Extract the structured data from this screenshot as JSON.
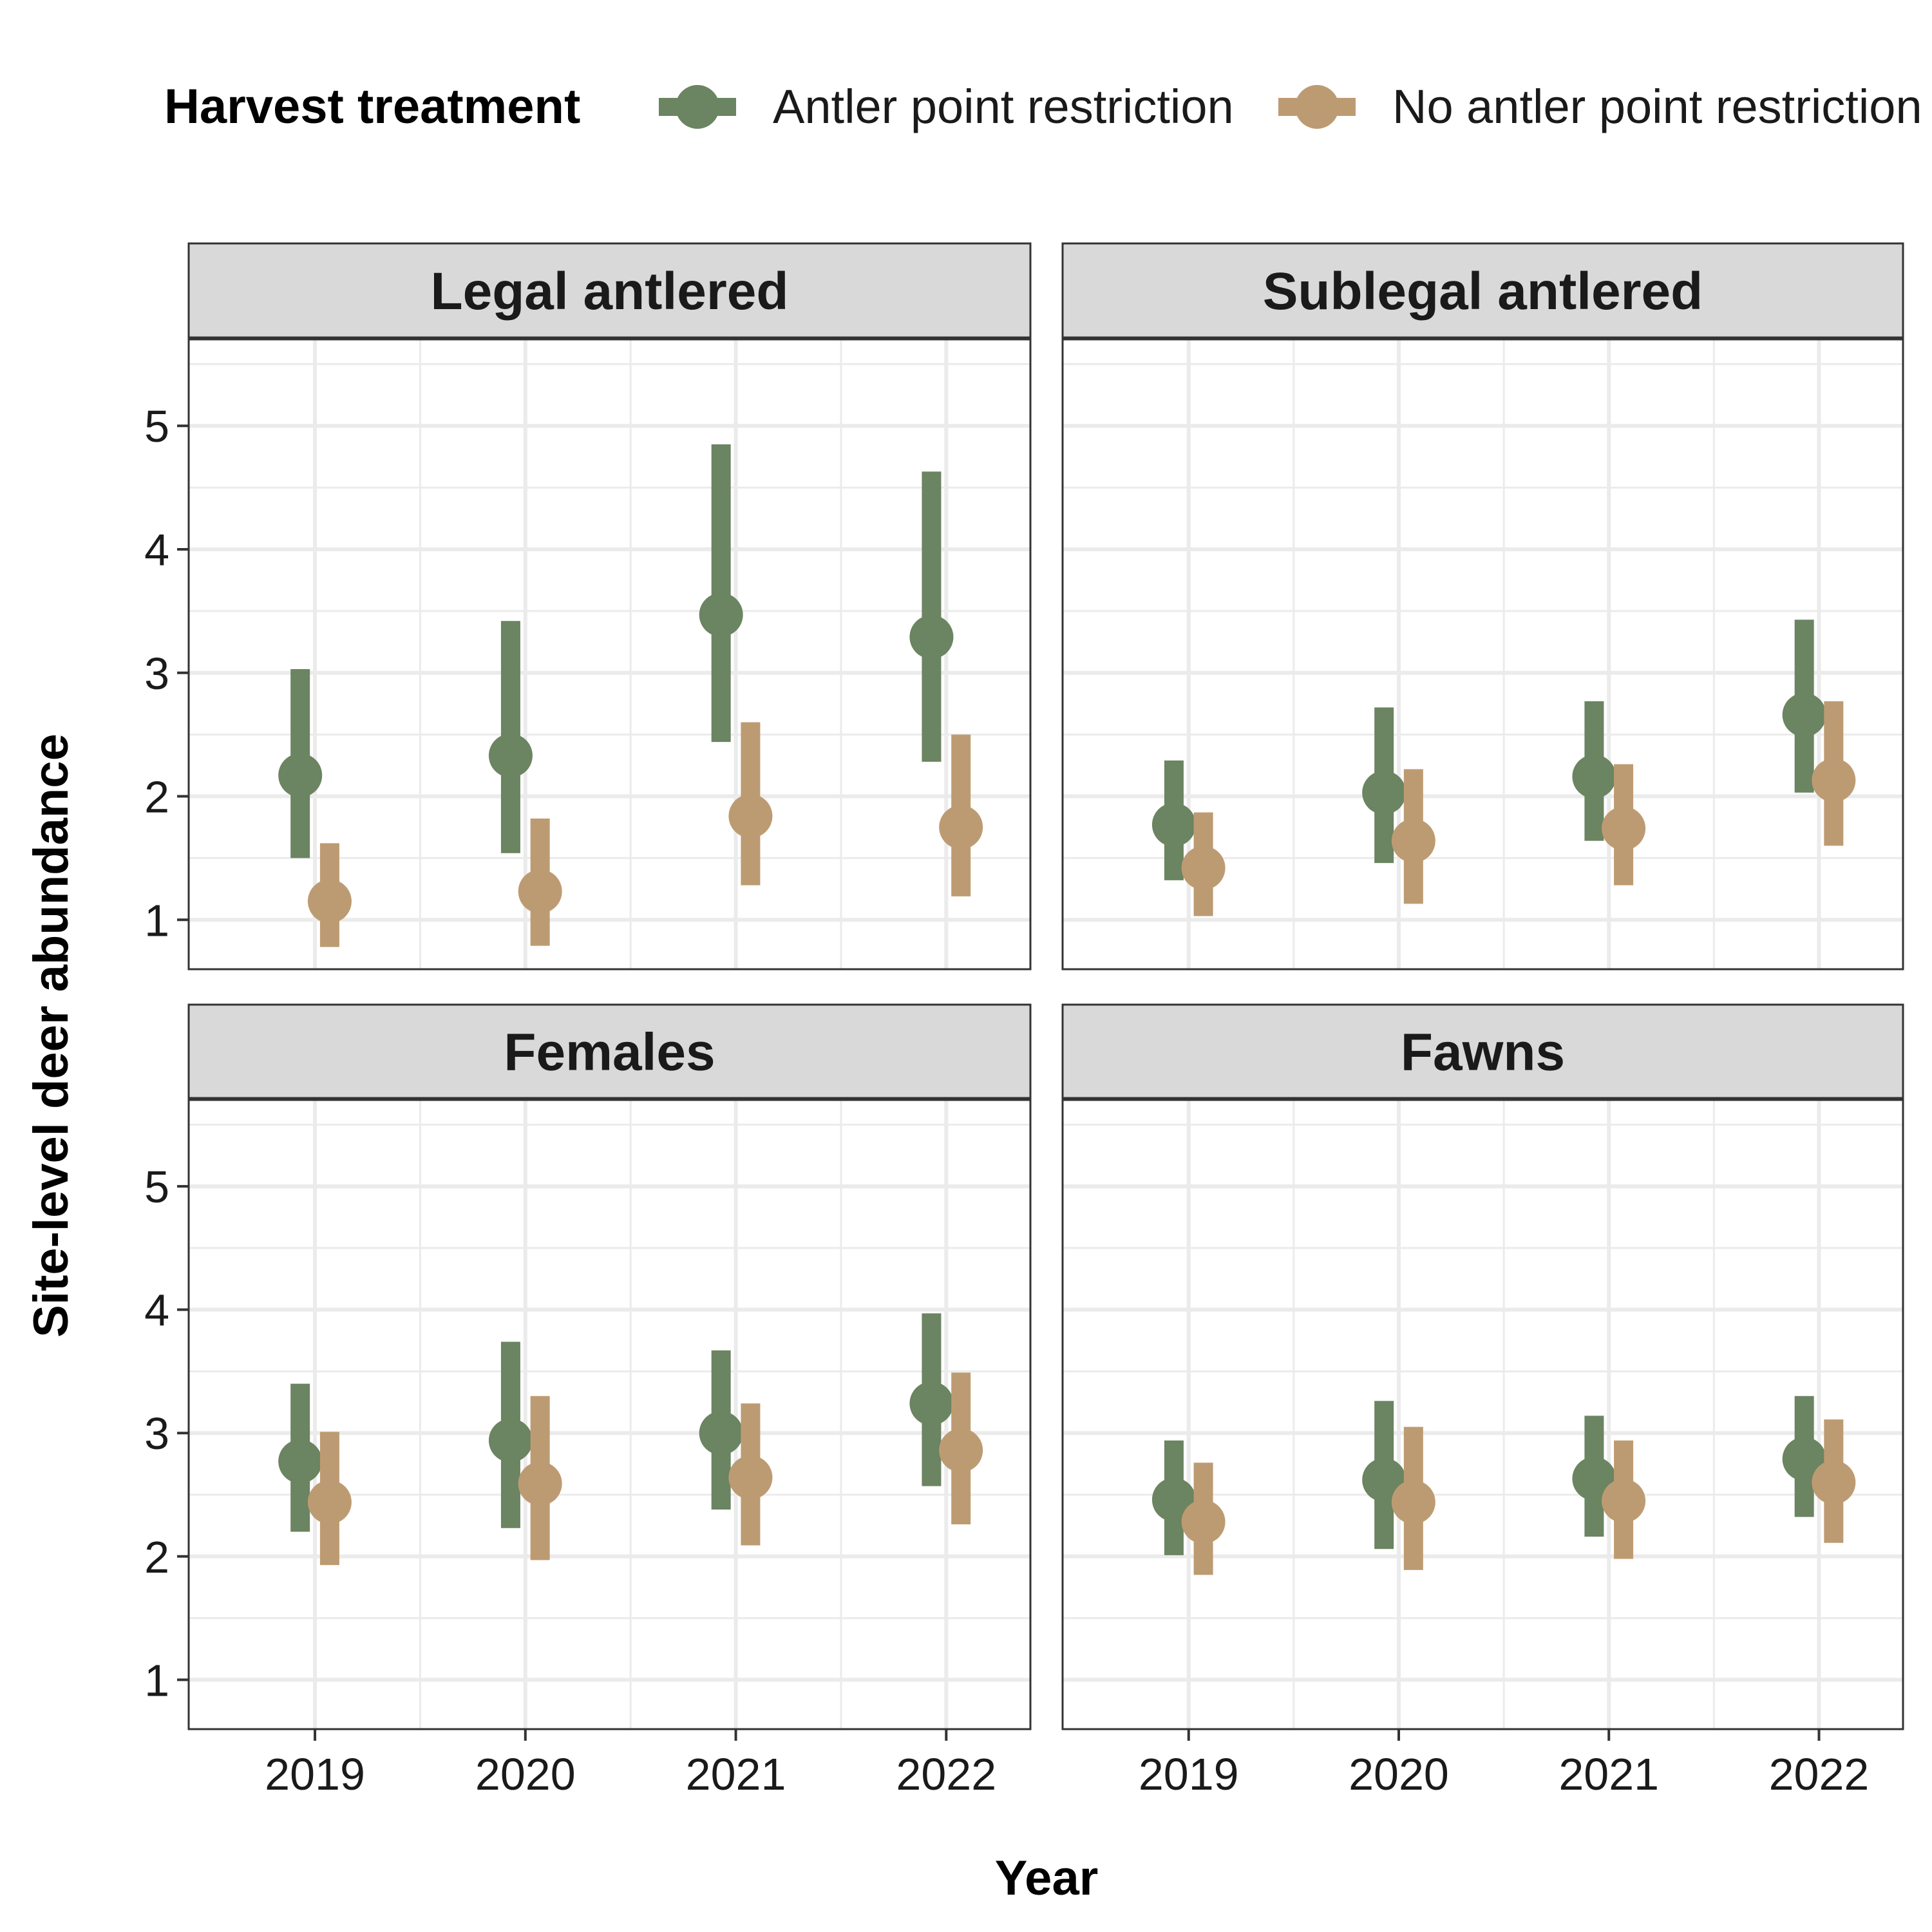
{
  "legend": {
    "title": "Harvest treatment"
  },
  "axes": {
    "x_title": "Year",
    "y_title": "Site-level deer abundance"
  },
  "chart_data": {
    "type": "scatter",
    "subtype": "point-range",
    "facet_layout": "2x2",
    "legend_position": "top",
    "grid": true,
    "xlabel": "Year",
    "ylabel": "Site-level deer abundance",
    "categories": [
      "2019",
      "2020",
      "2021",
      "2022"
    ],
    "ylim": [
      0.6,
      5.7
    ],
    "yticks": [
      1,
      2,
      3,
      4,
      5
    ],
    "series_meta": [
      {
        "name": "Antler point restriction",
        "color": "#6b8461"
      },
      {
        "name": "No antler point restriction",
        "color": "#bd9b72"
      }
    ],
    "panels": [
      {
        "title": "Legal antlered",
        "series": [
          {
            "name": "Antler point restriction",
            "values": [
              2.17,
              2.33,
              3.47,
              3.29
            ],
            "lower": [
              1.5,
              1.54,
              2.44,
              2.28
            ],
            "upper": [
              3.03,
              3.42,
              4.85,
              4.63
            ]
          },
          {
            "name": "No antler point restriction",
            "values": [
              1.15,
              1.23,
              1.84,
              1.75
            ],
            "lower": [
              0.78,
              0.79,
              1.28,
              1.19
            ],
            "upper": [
              1.62,
              1.82,
              2.6,
              2.5
            ]
          }
        ]
      },
      {
        "title": "Sublegal antlered",
        "series": [
          {
            "name": "Antler point restriction",
            "values": [
              1.77,
              2.03,
              2.16,
              2.66
            ],
            "lower": [
              1.32,
              1.46,
              1.64,
              2.03
            ],
            "upper": [
              2.29,
              2.72,
              2.77,
              3.43
            ]
          },
          {
            "name": "No antler point restriction",
            "values": [
              1.42,
              1.64,
              1.74,
              2.13
            ],
            "lower": [
              1.03,
              1.13,
              1.28,
              1.6
            ],
            "upper": [
              1.87,
              2.22,
              2.26,
              2.77
            ]
          }
        ]
      },
      {
        "title": "Females",
        "series": [
          {
            "name": "Antler point restriction",
            "values": [
              2.77,
              2.94,
              3.0,
              3.24
            ],
            "lower": [
              2.2,
              2.23,
              2.38,
              2.57
            ],
            "upper": [
              3.4,
              3.74,
              3.67,
              3.97
            ]
          },
          {
            "name": "No antler point restriction",
            "values": [
              2.44,
              2.59,
              2.64,
              2.86
            ],
            "lower": [
              1.93,
              1.97,
              2.09,
              2.26
            ],
            "upper": [
              3.01,
              3.3,
              3.24,
              3.49
            ]
          }
        ]
      },
      {
        "title": "Fawns",
        "series": [
          {
            "name": "Antler point restriction",
            "values": [
              2.46,
              2.62,
              2.63,
              2.79
            ],
            "lower": [
              2.01,
              2.06,
              2.16,
              2.32
            ],
            "upper": [
              2.94,
              3.26,
              3.14,
              3.3
            ]
          },
          {
            "name": "No antler point restriction",
            "values": [
              2.28,
              2.44,
              2.45,
              2.6
            ],
            "lower": [
              1.85,
              1.89,
              1.98,
              2.11
            ],
            "upper": [
              2.76,
              3.05,
              2.94,
              3.11
            ]
          }
        ]
      }
    ]
  }
}
